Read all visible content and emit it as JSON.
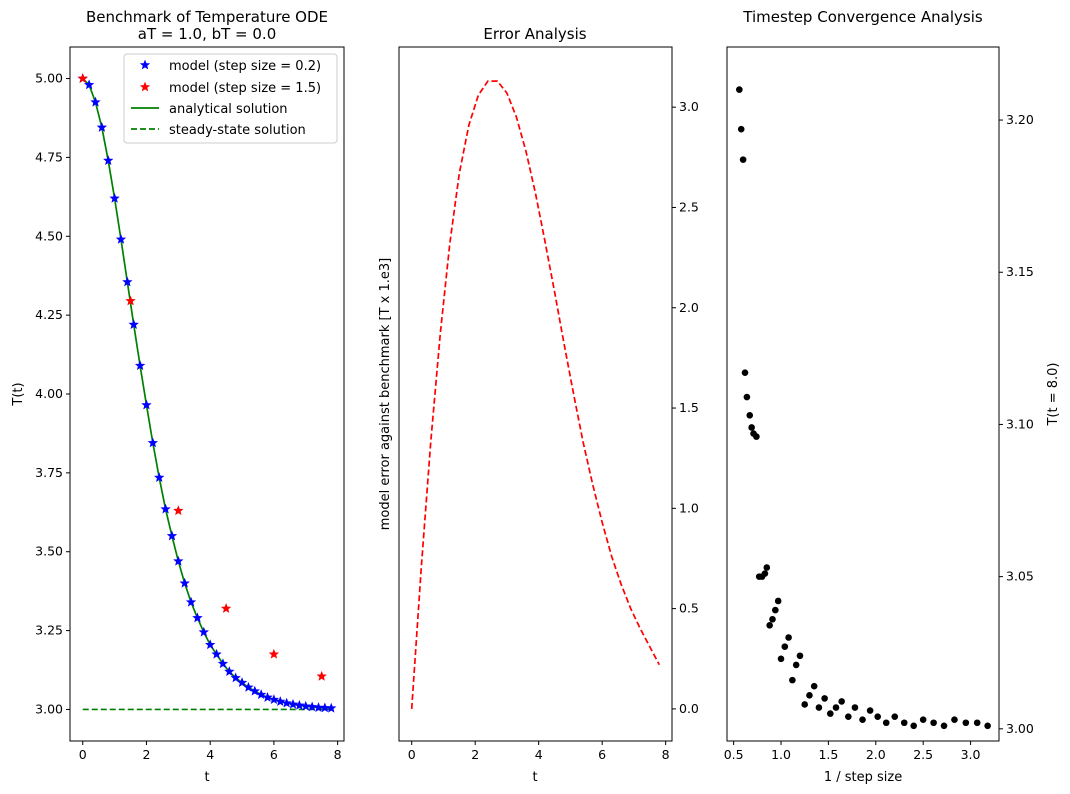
{
  "chart_data": [
    {
      "type": "line",
      "title": "Benchmark of Temperature ODE",
      "subtitle": "aT = 1.0, bT = 0.0",
      "xlabel": "t",
      "ylabel": "T(t)",
      "xlim": [
        -0.4,
        8.2
      ],
      "ylim": [
        2.9,
        5.1
      ],
      "xticks": [
        0,
        2,
        4,
        6,
        8
      ],
      "yticks": [
        3.0,
        3.25,
        3.5,
        3.75,
        4.0,
        4.25,
        4.5,
        4.75,
        5.0
      ],
      "ytick_labels": [
        "3.00",
        "3.25",
        "3.50",
        "3.75",
        "4.00",
        "4.25",
        "4.50",
        "4.75",
        "5.00"
      ],
      "legend_position": "top-right",
      "series": [
        {
          "name": "model (step size = 0.2)",
          "kind": "star-markers",
          "color": "#0000ff",
          "x": [
            0.0,
            0.2,
            0.4,
            0.6,
            0.8,
            1.0,
            1.2,
            1.4,
            1.6,
            1.8,
            2.0,
            2.2,
            2.4,
            2.6,
            2.8,
            3.0,
            3.2,
            3.4,
            3.6,
            3.8,
            4.0,
            4.2,
            4.4,
            4.6,
            4.8,
            5.0,
            5.2,
            5.4,
            5.6,
            5.8,
            6.0,
            6.2,
            6.4,
            6.6,
            6.8,
            7.0,
            7.2,
            7.4,
            7.6,
            7.8
          ],
          "y": [
            5.0,
            4.98,
            4.925,
            4.845,
            4.74,
            4.62,
            4.49,
            4.355,
            4.22,
            4.09,
            3.965,
            3.845,
            3.735,
            3.635,
            3.55,
            3.47,
            3.4,
            3.34,
            3.29,
            3.245,
            3.205,
            3.175,
            3.145,
            3.12,
            3.1,
            3.085,
            3.07,
            3.058,
            3.047,
            3.038,
            3.031,
            3.025,
            3.02,
            3.016,
            3.013,
            3.01,
            3.008,
            3.006,
            3.005,
            3.004
          ]
        },
        {
          "name": "model (step size = 1.5)",
          "kind": "star-markers",
          "color": "#ff0000",
          "x": [
            0.0,
            1.5,
            3.0,
            4.5,
            6.0,
            7.5
          ],
          "y": [
            5.0,
            4.295,
            3.63,
            3.32,
            3.175,
            3.105
          ]
        },
        {
          "name": "analytical solution",
          "kind": "solid-line",
          "color": "#008000",
          "x": [
            0.0,
            0.2,
            0.4,
            0.6,
            0.8,
            1.0,
            1.2,
            1.4,
            1.6,
            1.8,
            2.0,
            2.2,
            2.4,
            2.6,
            2.8,
            3.0,
            3.2,
            3.4,
            3.6,
            3.8,
            4.0,
            4.2,
            4.4,
            4.6,
            4.8,
            5.0,
            5.2,
            5.4,
            5.6,
            5.8,
            6.0,
            6.2,
            6.4,
            6.6,
            6.8,
            7.0,
            7.2,
            7.4,
            7.6,
            7.8
          ],
          "y": [
            5.0,
            4.98,
            4.925,
            4.845,
            4.74,
            4.62,
            4.49,
            4.355,
            4.22,
            4.09,
            3.965,
            3.845,
            3.735,
            3.635,
            3.55,
            3.47,
            3.4,
            3.34,
            3.29,
            3.245,
            3.205,
            3.175,
            3.145,
            3.12,
            3.1,
            3.085,
            3.07,
            3.058,
            3.047,
            3.038,
            3.031,
            3.025,
            3.02,
            3.016,
            3.013,
            3.01,
            3.008,
            3.006,
            3.005,
            3.004
          ]
        },
        {
          "name": "steady-state solution",
          "kind": "dashed-line",
          "color": "#008000",
          "x": [
            0.0,
            7.8
          ],
          "y": [
            3.0,
            3.0
          ]
        }
      ]
    },
    {
      "type": "line",
      "title": "Error Analysis",
      "xlabel": "t",
      "ylabel": "model error against benchmark [T x 1.e3]",
      "xlim": [
        -0.4,
        8.2
      ],
      "ylim": [
        -0.16,
        3.3
      ],
      "xticks": [
        0,
        2,
        4,
        6,
        8
      ],
      "yticks": [
        0.0,
        0.5,
        1.0,
        1.5,
        2.0,
        2.5,
        3.0
      ],
      "yaxis_side": "right",
      "series": [
        {
          "kind": "dashed-line",
          "color": "#ff0000",
          "x": [
            0.0,
            0.3,
            0.6,
            0.9,
            1.2,
            1.5,
            1.8,
            2.1,
            2.4,
            2.7,
            3.0,
            3.3,
            3.6,
            3.9,
            4.2,
            4.5,
            4.8,
            5.1,
            5.4,
            5.7,
            6.0,
            6.3,
            6.6,
            6.9,
            7.2,
            7.5,
            7.8
          ],
          "y": [
            0.0,
            0.7,
            1.33,
            1.87,
            2.32,
            2.67,
            2.91,
            3.06,
            3.13,
            3.13,
            3.07,
            2.95,
            2.78,
            2.57,
            2.33,
            2.08,
            1.82,
            1.57,
            1.33,
            1.12,
            0.93,
            0.76,
            0.62,
            0.5,
            0.4,
            0.31,
            0.22
          ]
        }
      ]
    },
    {
      "type": "scatter",
      "title": "Timestep Convergence Analysis",
      "xlabel": "1 / step size",
      "ylabel": "T(t = 8.0)",
      "xlim": [
        0.43,
        3.3
      ],
      "ylim": [
        2.996,
        3.224
      ],
      "xticks": [
        0.5,
        1.0,
        1.5,
        2.0,
        2.5,
        3.0
      ],
      "xtick_labels": [
        "0.5",
        "1.0",
        "1.5",
        "2.0",
        "2.5",
        "3.0"
      ],
      "yticks": [
        3.0,
        3.05,
        3.1,
        3.15,
        3.2
      ],
      "ytick_labels": [
        "3.00",
        "3.05",
        "3.10",
        "3.15",
        "3.20"
      ],
      "yaxis_side": "right",
      "series": [
        {
          "kind": "dot-markers",
          "color": "#000000",
          "x": [
            0.56,
            0.58,
            0.6,
            0.62,
            0.64,
            0.67,
            0.69,
            0.71,
            0.74,
            0.77,
            0.8,
            0.83,
            0.85,
            0.88,
            0.91,
            0.94,
            0.97,
            1.0,
            1.04,
            1.08,
            1.12,
            1.16,
            1.2,
            1.25,
            1.3,
            1.35,
            1.4,
            1.46,
            1.52,
            1.58,
            1.64,
            1.71,
            1.78,
            1.86,
            1.94,
            2.02,
            2.11,
            2.2,
            2.3,
            2.4,
            2.5,
            2.61,
            2.72,
            2.83,
            2.95,
            3.07,
            3.18
          ],
          "y": [
            3.21,
            3.197,
            3.187,
            3.117,
            3.109,
            3.103,
            3.099,
            3.097,
            3.096,
            3.05,
            3.05,
            3.051,
            3.053,
            3.034,
            3.036,
            3.039,
            3.042,
            3.023,
            3.027,
            3.03,
            3.016,
            3.021,
            3.024,
            3.008,
            3.011,
            3.014,
            3.007,
            3.01,
            3.005,
            3.007,
            3.009,
            3.004,
            3.007,
            3.003,
            3.006,
            3.004,
            3.002,
            3.004,
            3.002,
            3.001,
            3.003,
            3.002,
            3.001,
            3.003,
            3.002,
            3.002,
            3.001
          ]
        }
      ]
    }
  ]
}
